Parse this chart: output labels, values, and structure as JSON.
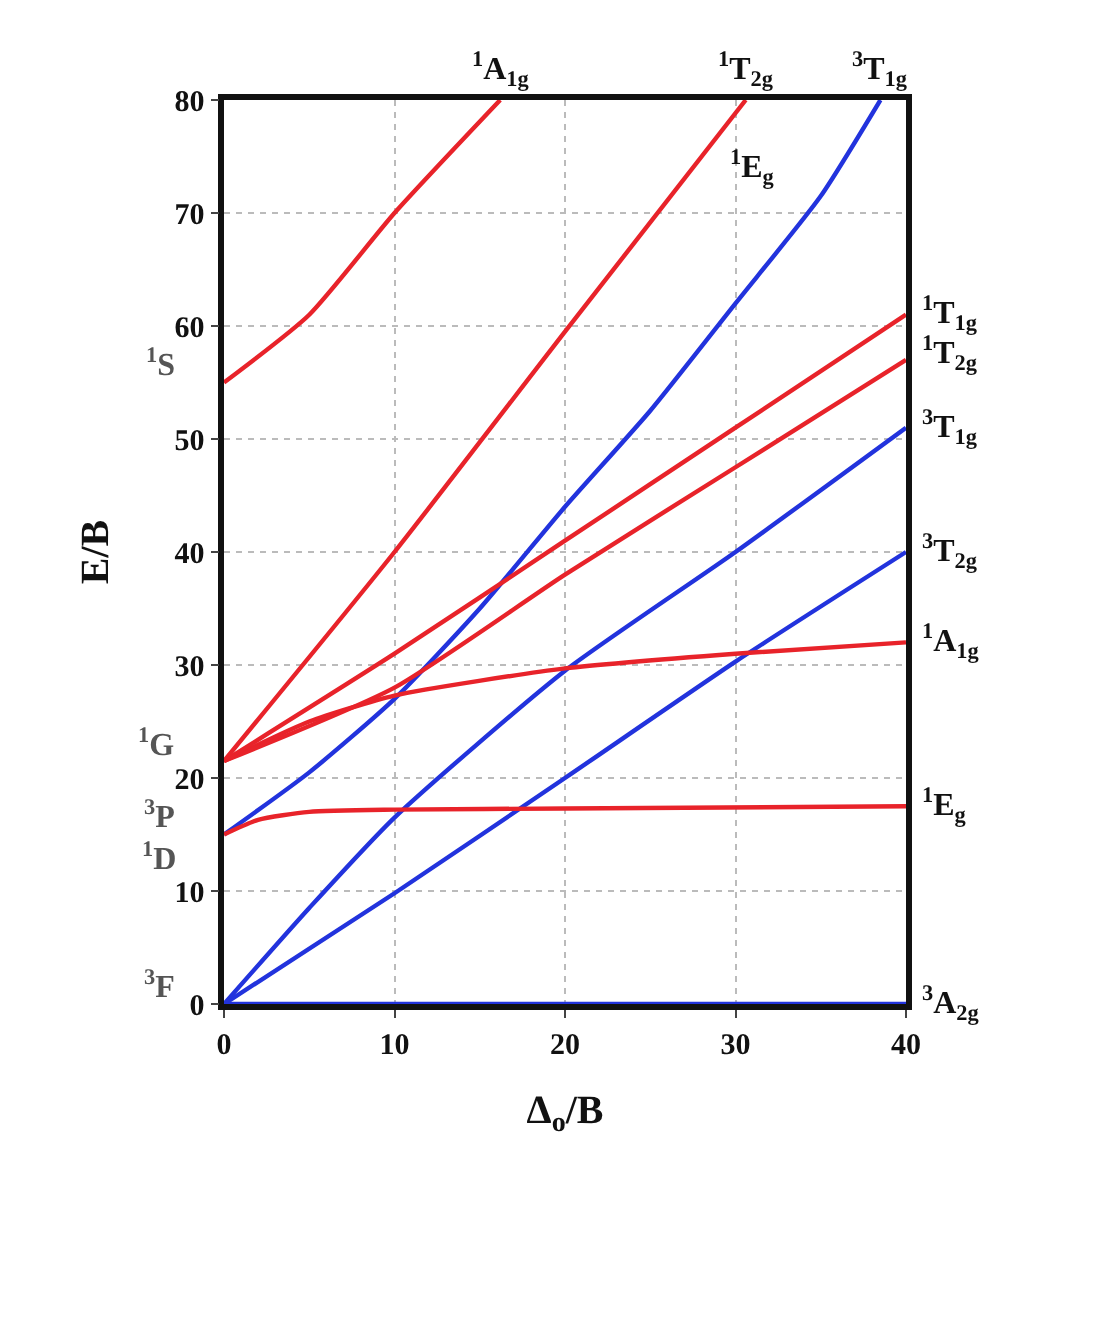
{
  "chart_data": {
    "type": "line",
    "xlabel": "Δ$_{o}$/B",
    "ylabel": "E/B",
    "xlim": [
      0,
      40
    ],
    "ylim": [
      0,
      80
    ],
    "xticks": [
      0,
      10,
      20,
      30,
      40
    ],
    "yticks": [
      0,
      10,
      20,
      30,
      40,
      50,
      60,
      70,
      80
    ],
    "grid": true,
    "line_style": "solid",
    "series": [
      {
        "color": "#2233dd",
        "x": [
          0,
          40
        ],
        "values": [
          0,
          0
        ]
      },
      {
        "color": "#2233dd",
        "x": [
          0,
          10,
          20,
          30,
          40
        ],
        "values": [
          0,
          9.8,
          20,
          30.3,
          40
        ]
      },
      {
        "color": "#2233dd",
        "x": [
          0,
          5,
          10,
          20,
          30,
          40
        ],
        "values": [
          0,
          8.5,
          16.5,
          29.5,
          40,
          51
        ]
      },
      {
        "color": "#2233dd",
        "x": [
          0,
          5,
          10,
          15,
          20,
          25,
          30,
          35,
          38.5
        ],
        "values": [
          15,
          20.5,
          27,
          35,
          44,
          52.5,
          62,
          71.5,
          80
        ]
      },
      {
        "color": "#e8232a",
        "x": [
          0,
          2,
          5,
          10,
          20,
          40
        ],
        "values": [
          15,
          16.3,
          17,
          17.2,
          17.3,
          17.5
        ]
      },
      {
        "color": "#e8232a",
        "x": [
          0,
          5,
          10,
          20,
          30,
          40
        ],
        "values": [
          21.5,
          25,
          27.3,
          29.7,
          31,
          32
        ]
      },
      {
        "color": "#e8232a",
        "x": [
          0,
          10,
          20,
          30,
          40
        ],
        "values": [
          21.5,
          28,
          38,
          47.5,
          57
        ]
      },
      {
        "color": "#e8232a",
        "x": [
          0,
          10,
          20,
          30,
          40
        ],
        "values": [
          21.5,
          31,
          41,
          51,
          61
        ]
      },
      {
        "color": "#e8232a",
        "x": [
          0,
          10,
          20,
          30.6
        ],
        "values": [
          21.5,
          40,
          59.5,
          80
        ]
      },
      {
        "color": "#e8232a",
        "x": [
          0,
          5,
          10,
          16.2
        ],
        "values": [
          55,
          61,
          70,
          80
        ]
      }
    ],
    "annotations": [
      {
        "text": "$^{1}$S",
        "x": 0,
        "y": 55
      },
      {
        "text": "$^{1}$G",
        "x": 0,
        "y": 21.5
      },
      {
        "text": "$^{3}$P",
        "x": 0,
        "y": 15
      },
      {
        "text": "$^{1}$D",
        "x": 0,
        "y": 15
      },
      {
        "text": "$^{3}$F",
        "x": 0,
        "y": 0
      },
      {
        "text": "$^{1}$T$_{1g}$",
        "x": 40,
        "y": 61
      },
      {
        "text": "$^{1}$T$_{2g}$",
        "x": 40,
        "y": 57.5
      },
      {
        "text": "$^{3}$T$_{1g}$",
        "x": 40,
        "y": 51
      },
      {
        "text": "$^{3}$T$_{2g}$",
        "x": 40,
        "y": 40
      },
      {
        "text": "$^{1}$A$_{1g}$",
        "x": 40,
        "y": 32
      },
      {
        "text": "$^{1}$E$_{g}$",
        "x": 40,
        "y": 17.5
      },
      {
        "text": "$^{3}$A$_{2g}$",
        "x": 40,
        "y": 0
      },
      {
        "text": "$^{1}$A$_{1g}$",
        "x": 16.2,
        "y": 80
      },
      {
        "text": "$^{1}$T$_{2g}$",
        "x": 30.6,
        "y": 80
      },
      {
        "text": "$^{3}$T$_{1g}$",
        "x": 38.5,
        "y": 80
      },
      {
        "text": "$^{1}$E$_{g}$",
        "x": 27.8,
        "y": 74
      }
    ]
  }
}
